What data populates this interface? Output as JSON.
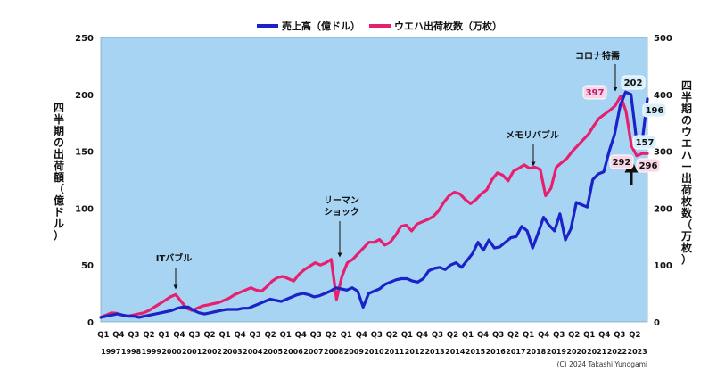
{
  "chart_data": {
    "type": "line",
    "legend": {
      "placement": "top-center",
      "items": [
        {
          "label": "売上高（億ドル）",
          "color": "#1a22c8"
        },
        {
          "label": "ウエハ出荷枚数（万枚）",
          "color": "#e6206e"
        }
      ]
    },
    "y_left": {
      "label_chars": [
        "四",
        "半",
        "期",
        "の",
        "出",
        "荷",
        "額",
        "（",
        "億",
        "ド",
        "ル",
        "）"
      ],
      "range": [
        0,
        250
      ],
      "ticks": [
        "0",
        "50",
        "100",
        "150",
        "200",
        "250"
      ]
    },
    "y_right": {
      "label_chars": [
        "四",
        "半",
        "期",
        "の",
        "ウ",
        "エ",
        "ハ",
        "ー",
        "出",
        "荷",
        "枚",
        "数",
        "（",
        "万",
        "枚",
        "）"
      ],
      "range": [
        0,
        500
      ],
      "ticks": [
        "0",
        "100",
        "200",
        "300",
        "400",
        "500"
      ]
    },
    "x": {
      "quarter_labels": [
        "Q1",
        "Q4",
        "Q3",
        "Q2",
        "Q1",
        "Q4",
        "Q3",
        "Q2",
        "Q1",
        "Q4",
        "Q3",
        "Q2",
        "Q1",
        "Q4",
        "Q3",
        "Q2",
        "Q1",
        "Q4",
        "Q3",
        "Q2",
        "Q1",
        "Q4",
        "Q3",
        "Q2",
        "Q1",
        "Q4",
        "Q3",
        "Q2",
        "Q1",
        "Q4",
        "Q3",
        "Q2",
        "Q1",
        "Q4",
        "Q3",
        "Q2"
      ],
      "year_labels": [
        "1997",
        "1998",
        "1999",
        "2000",
        "2001",
        "2002",
        "2003",
        "2004",
        "2005",
        "2006",
        "2007",
        "2008",
        "2009",
        "2010",
        "2011",
        "2012",
        "2013",
        "2014",
        "2015",
        "2016",
        "2017",
        "2018",
        "2019",
        "2020",
        "2021",
        "2022",
        "2023"
      ],
      "n_quarters": 108
    },
    "series": [
      {
        "name": "売上高（億ドル）",
        "color": "#1a22c8",
        "axis": "left",
        "values": [
          4,
          5,
          6,
          7,
          6,
          5,
          5,
          4,
          5,
          6,
          7,
          8,
          9,
          10,
          12,
          13,
          13,
          10,
          8,
          7,
          8,
          9,
          10,
          11,
          11,
          11,
          12,
          12,
          14,
          16,
          18,
          20,
          19,
          18,
          20,
          22,
          24,
          25,
          24,
          22,
          23,
          25,
          27,
          30,
          29,
          28,
          30,
          27,
          13,
          25,
          27,
          29,
          33,
          35,
          37,
          38,
          38,
          36,
          35,
          38,
          45,
          47,
          48,
          46,
          50,
          52,
          48,
          54,
          60,
          70,
          63,
          72,
          65,
          66,
          70,
          74,
          75,
          84,
          80,
          65,
          78,
          92,
          85,
          80,
          95,
          72,
          82,
          105,
          103,
          101,
          125,
          130,
          132,
          150,
          165,
          190,
          202,
          200,
          160,
          157,
          196
        ]
      },
      {
        "name": "ウエハ出荷枚数（万枚）",
        "color": "#e6206e",
        "axis": "right",
        "values": [
          8,
          12,
          16,
          15,
          12,
          10,
          12,
          14,
          16,
          20,
          26,
          32,
          38,
          44,
          48,
          36,
          24,
          20,
          24,
          28,
          30,
          32,
          34,
          38,
          42,
          48,
          52,
          56,
          60,
          56,
          54,
          62,
          72,
          78,
          80,
          76,
          72,
          84,
          92,
          98,
          104,
          100,
          104,
          110,
          40,
          80,
          104,
          110,
          120,
          130,
          140,
          140,
          145,
          135,
          140,
          152,
          168,
          170,
          160,
          172,
          176,
          180,
          185,
          195,
          210,
          222,
          228,
          225,
          215,
          208,
          215,
          225,
          232,
          250,
          262,
          258,
          248,
          265,
          270,
          276,
          270,
          272,
          268,
          222,
          235,
          272,
          280,
          288,
          300,
          310,
          320,
          330,
          345,
          358,
          365,
          372,
          380,
          397,
          370,
          310,
          292,
          296,
          296
        ]
      }
    ],
    "annotations": [
      {
        "text": "ITバブル"
      },
      {
        "text": "リーマン"
      },
      {
        "text": "ショック"
      },
      {
        "text": "メモリバブル"
      },
      {
        "text": "コロナ特需"
      }
    ],
    "data_labels": [
      {
        "text": "397",
        "series": "wafer"
      },
      {
        "text": "202",
        "series": "revenue"
      },
      {
        "text": "196",
        "series": "revenue"
      },
      {
        "text": "157",
        "series": "revenue"
      },
      {
        "text": "292",
        "series": "wafer"
      },
      {
        "text": "296",
        "series": "wafer"
      }
    ],
    "grid": "none",
    "plot_background": "#a8d4f4",
    "copyright": "(C) 2024 Takashi Yunogami"
  }
}
